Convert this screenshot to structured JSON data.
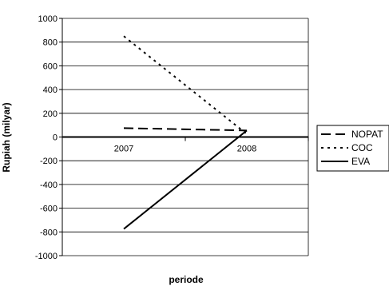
{
  "chart_data": {
    "type": "line",
    "title": "",
    "xlabel": "periode",
    "ylabel": "Rupiah (milyar)",
    "categories": [
      "2007",
      "2008"
    ],
    "ylim": [
      -1000,
      1000
    ],
    "ytick_step": 200,
    "yticks": [
      "1000",
      "800",
      "600",
      "400",
      "200",
      "0",
      "-200",
      "-400",
      "-600",
      "-800",
      "-1000"
    ],
    "grid": true,
    "legend_position": "right",
    "series": [
      {
        "name": "NOPAT",
        "values": [
          75,
          55
        ],
        "color": "#000000",
        "dash": "dashed"
      },
      {
        "name": "COC",
        "values": [
          850,
          25
        ],
        "color": "#000000",
        "dash": "dotted"
      },
      {
        "name": "EVA",
        "values": [
          -775,
          55
        ],
        "color": "#000000",
        "dash": "solid"
      }
    ]
  }
}
